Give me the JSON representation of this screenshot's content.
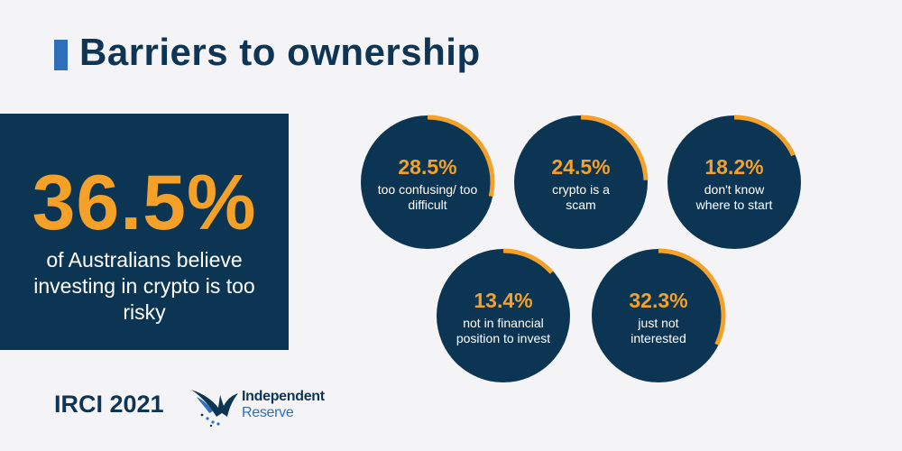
{
  "title": "Barriers to ownership",
  "hero": {
    "value": "36.5%",
    "text": "of Australians believe investing in crypto is too risky"
  },
  "footer": {
    "year_label": "IRCI 2021",
    "logo_line1": "Independent",
    "logo_line2": "Reserve"
  },
  "colors": {
    "navy": "#0c3554",
    "accent": "#f5a128",
    "brand_blue": "#2f6fb9",
    "background": "#f4f4f6"
  },
  "chart_data": {
    "type": "pie",
    "values": [
      28.5,
      24.5,
      18.2,
      13.4,
      32.3
    ],
    "labels": [
      "28.5%",
      "24.5%",
      "18.2%",
      "13.4%",
      "32.3%"
    ],
    "categories": [
      "too confusing/ too difficult",
      "crypto is a scam",
      "don't know where to start",
      "not in financial position to invest",
      "just not interested"
    ]
  }
}
